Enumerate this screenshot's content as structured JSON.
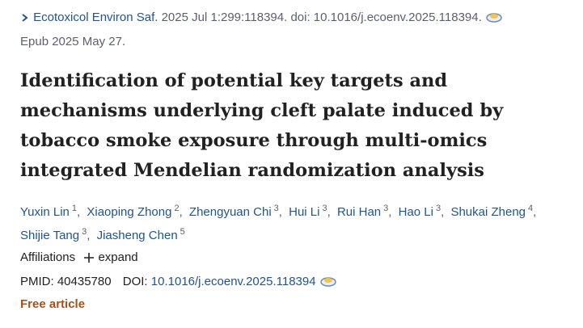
{
  "citation": {
    "journal": "Ecotoxicol Environ Saf.",
    "details": "2025 Jul 1:299:118394. doi: 10.1016/j.ecoenv.2025.118394.",
    "epub": "Epub 2025 May 27."
  },
  "title": "Identification of potential key targets and mechanisms underlying cleft palate induced by tobacco smoke exposure through multi-omics integrated Mendelian randomization analysis",
  "authors": [
    {
      "name": "Yuxin Lin",
      "aff": "1"
    },
    {
      "name": "Xiaoping Zhong",
      "aff": "2"
    },
    {
      "name": "Zhengyuan Chi",
      "aff": "3"
    },
    {
      "name": "Hui Li",
      "aff": "3"
    },
    {
      "name": "Rui Han",
      "aff": "3"
    },
    {
      "name": "Hao Li",
      "aff": "3"
    },
    {
      "name": "Shukai Zheng",
      "aff": "4"
    },
    {
      "name": "Shijie Tang",
      "aff": "3"
    },
    {
      "name": "Jiasheng Chen",
      "aff": "5"
    }
  ],
  "affiliations": {
    "label": "Affiliations",
    "toggle": "expand"
  },
  "ids": {
    "pmid_label": "PMID:",
    "pmid": "40435780",
    "doi_label": "DOI:",
    "doi": "10.1016/j.ecoenv.2025.118394"
  },
  "free": "Free article"
}
